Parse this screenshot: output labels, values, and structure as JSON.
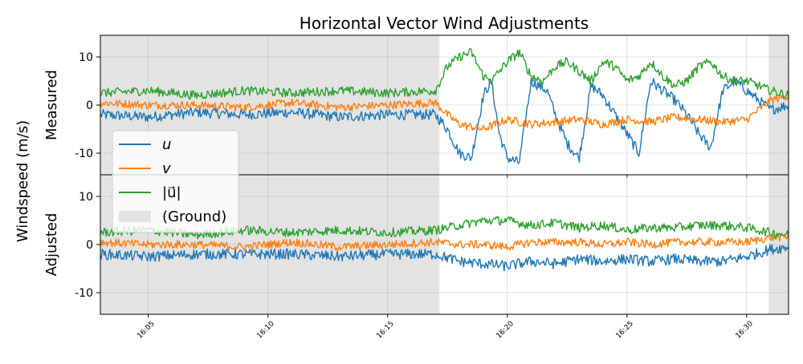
{
  "chart_data": {
    "type": "line",
    "title": "Horizontal Vector Wind Adjustments",
    "shared_ylabel": "Windspeed (m/s)",
    "x_unit": "time (HH:MM)",
    "xlim": [
      "16:03:00",
      "16:31:45"
    ],
    "x_ticks": [
      "16:05",
      "16:10",
      "16:15",
      "16:20",
      "16:25",
      "16:30"
    ],
    "grid": true,
    "legend": {
      "placement": "left, overlapping both panels",
      "entries": [
        {
          "label": "u",
          "color": "#1f77b4",
          "kind": "line"
        },
        {
          "label": "v",
          "color": "#ff7f0e",
          "kind": "line"
        },
        {
          "label": "|u⃗|",
          "color": "#2ca02c",
          "kind": "line"
        },
        {
          "label": "(Ground)",
          "color": "#e3e3e3",
          "kind": "patch"
        }
      ]
    },
    "ground_spans": [
      [
        "16:03:00",
        "16:17:10"
      ],
      [
        "16:30:55",
        "16:31:45"
      ]
    ],
    "panels": [
      {
        "name": "measured",
        "ylabel": "Measured",
        "ylim": [
          -14.5,
          14.5
        ],
        "y_ticks": [
          10,
          0,
          -10
        ],
        "series": [
          {
            "name": "u",
            "color": "#1f77b4",
            "x": [
              "16:03:00",
              "16:05:00",
              "16:07:00",
              "16:09:00",
              "16:11:00",
              "16:13:00",
              "16:15:00",
              "16:17:00",
              "16:17:30",
              "16:18:00",
              "16:18:30",
              "16:19:00",
              "16:19:20",
              "16:19:40",
              "16:20:00",
              "16:20:30",
              "16:21:00",
              "16:21:20",
              "16:21:40",
              "16:22:00",
              "16:22:30",
              "16:23:00",
              "16:23:30",
              "16:24:00",
              "16:24:30",
              "16:25:00",
              "16:25:30",
              "16:26:00",
              "16:26:30",
              "16:27:00",
              "16:27:30",
              "16:28:00",
              "16:28:30",
              "16:29:00",
              "16:29:30",
              "16:30:00",
              "16:30:30",
              "16:31:00",
              "16:31:45"
            ],
            "y": [
              -2,
              -2.5,
              -1.5,
              -2,
              -1.5,
              -2.5,
              -2,
              -2,
              -5,
              -10,
              -11,
              2,
              5,
              -6,
              -11,
              -12,
              5,
              4,
              3,
              -2,
              -8,
              -11,
              4,
              2,
              -2,
              -6,
              -10,
              5,
              3,
              1,
              -2,
              -6,
              -9,
              3,
              5,
              3,
              1,
              -1,
              0
            ]
          },
          {
            "name": "v",
            "color": "#ff7f0e",
            "x": [
              "16:03:00",
              "16:05:00",
              "16:07:00",
              "16:09:00",
              "16:11:00",
              "16:13:00",
              "16:15:00",
              "16:17:00",
              "16:17:30",
              "16:18:00",
              "16:19:00",
              "16:20:00",
              "16:21:00",
              "16:22:00",
              "16:23:00",
              "16:24:00",
              "16:25:00",
              "16:26:00",
              "16:27:00",
              "16:28:00",
              "16:29:00",
              "16:30:00",
              "16:31:00",
              "16:31:45"
            ],
            "y": [
              0.5,
              0,
              0,
              -0.5,
              0.5,
              -0.5,
              0,
              0.5,
              -2,
              -4,
              -5,
              -3,
              -4,
              -3.5,
              -3,
              -4,
              -3,
              -3.5,
              -2.5,
              -3,
              -3.5,
              -3,
              1,
              2
            ]
          },
          {
            "name": "|u⃗|",
            "color": "#2ca02c",
            "x": [
              "16:03:00",
              "16:05:00",
              "16:07:00",
              "16:09:00",
              "16:11:00",
              "16:13:00",
              "16:15:00",
              "16:17:00",
              "16:17:30",
              "16:18:00",
              "16:18:30",
              "16:19:00",
              "16:19:20",
              "16:20:00",
              "16:20:30",
              "16:21:00",
              "16:21:30",
              "16:22:00",
              "16:22:30",
              "16:23:00",
              "16:23:30",
              "16:24:00",
              "16:24:30",
              "16:25:00",
              "16:25:30",
              "16:26:00",
              "16:26:30",
              "16:27:00",
              "16:27:30",
              "16:28:00",
              "16:28:30",
              "16:29:00",
              "16:29:30",
              "16:30:00",
              "16:30:30",
              "16:31:00",
              "16:31:45"
            ],
            "y": [
              2.5,
              3,
              2,
              3,
              2.5,
              3,
              2.5,
              3,
              8,
              10,
              11,
              6,
              5,
              9,
              11,
              6,
              5,
              8,
              9,
              7,
              5,
              9,
              8,
              5,
              6,
              9,
              6,
              4,
              5,
              8,
              9,
              6,
              5,
              5,
              4,
              3,
              2
            ]
          }
        ]
      },
      {
        "name": "adjusted",
        "ylabel": "Adjusted",
        "ylim": [
          -14.5,
          14.5
        ],
        "y_ticks": [
          10,
          0,
          -10
        ],
        "series": [
          {
            "name": "u",
            "color": "#1f77b4",
            "x": [
              "16:03:00",
              "16:05:00",
              "16:07:00",
              "16:09:00",
              "16:11:00",
              "16:13:00",
              "16:15:00",
              "16:17:00",
              "16:18:00",
              "16:19:00",
              "16:20:00",
              "16:21:00",
              "16:22:00",
              "16:23:00",
              "16:24:00",
              "16:25:00",
              "16:26:00",
              "16:27:00",
              "16:28:00",
              "16:29:00",
              "16:30:00",
              "16:31:00",
              "16:31:45"
            ],
            "y": [
              -2,
              -2.5,
              -2,
              -2,
              -2,
              -2.5,
              -2,
              -2,
              -3.5,
              -4,
              -4.5,
              -3.5,
              -4,
              -3,
              -3.5,
              -3,
              -3.5,
              -3,
              -3.5,
              -3.5,
              -2.5,
              -1,
              -0.5
            ]
          },
          {
            "name": "v",
            "color": "#ff7f0e",
            "x": [
              "16:03:00",
              "16:05:00",
              "16:07:00",
              "16:09:00",
              "16:11:00",
              "16:13:00",
              "16:15:00",
              "16:17:00",
              "16:18:00",
              "16:19:00",
              "16:20:00",
              "16:21:00",
              "16:22:00",
              "16:23:00",
              "16:24:00",
              "16:25:00",
              "16:26:00",
              "16:27:00",
              "16:28:00",
              "16:29:00",
              "16:30:00",
              "16:31:00",
              "16:31:45"
            ],
            "y": [
              0.5,
              0,
              0,
              -0.5,
              0.5,
              -0.5,
              0,
              0.5,
              0,
              0,
              -0.5,
              0.5,
              0.5,
              0.5,
              0,
              0.5,
              0,
              0.5,
              0.5,
              0.5,
              0.5,
              1.5,
              1.5
            ]
          },
          {
            "name": "|u⃗|",
            "color": "#2ca02c",
            "x": [
              "16:03:00",
              "16:05:00",
              "16:07:00",
              "16:09:00",
              "16:11:00",
              "16:13:00",
              "16:15:00",
              "16:17:00",
              "16:18:00",
              "16:19:00",
              "16:20:00",
              "16:21:00",
              "16:22:00",
              "16:23:00",
              "16:24:00",
              "16:25:00",
              "16:26:00",
              "16:27:00",
              "16:28:00",
              "16:29:00",
              "16:30:00",
              "16:31:00",
              "16:31:45"
            ],
            "y": [
              2.5,
              3,
              2,
              3,
              2.5,
              3,
              2.5,
              3,
              4,
              5,
              5,
              4,
              4.5,
              3.5,
              4,
              3,
              3.5,
              3.5,
              4,
              4,
              3.5,
              2.5,
              2
            ]
          }
        ]
      }
    ]
  }
}
